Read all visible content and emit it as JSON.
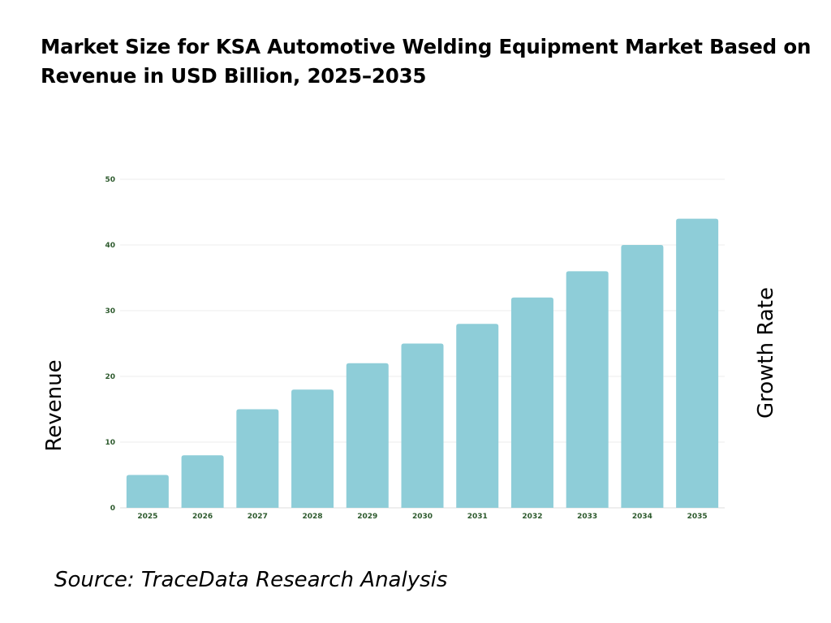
{
  "chart_data": {
    "type": "bar",
    "title": "Market Size for KSA Automotive Welding Equipment Market Based on Revenue in USD Billion, 2025–2035",
    "categories": [
      "2025",
      "2026",
      "2027",
      "2028",
      "2029",
      "2030",
      "2031",
      "2032",
      "2033",
      "2034",
      "2035"
    ],
    "values": [
      5,
      8,
      15,
      18,
      22,
      25,
      28,
      32,
      36,
      40,
      44
    ],
    "ylabel": "Revenue",
    "y2label": "Growth Rate",
    "ylim": [
      0,
      50
    ],
    "yticks": [
      0,
      10,
      20,
      30,
      40,
      50
    ],
    "grid": true,
    "bar_color": "#8ecdd8",
    "tick_color": "#2d5a2d"
  },
  "source": "Source: TraceData Research Analysis"
}
